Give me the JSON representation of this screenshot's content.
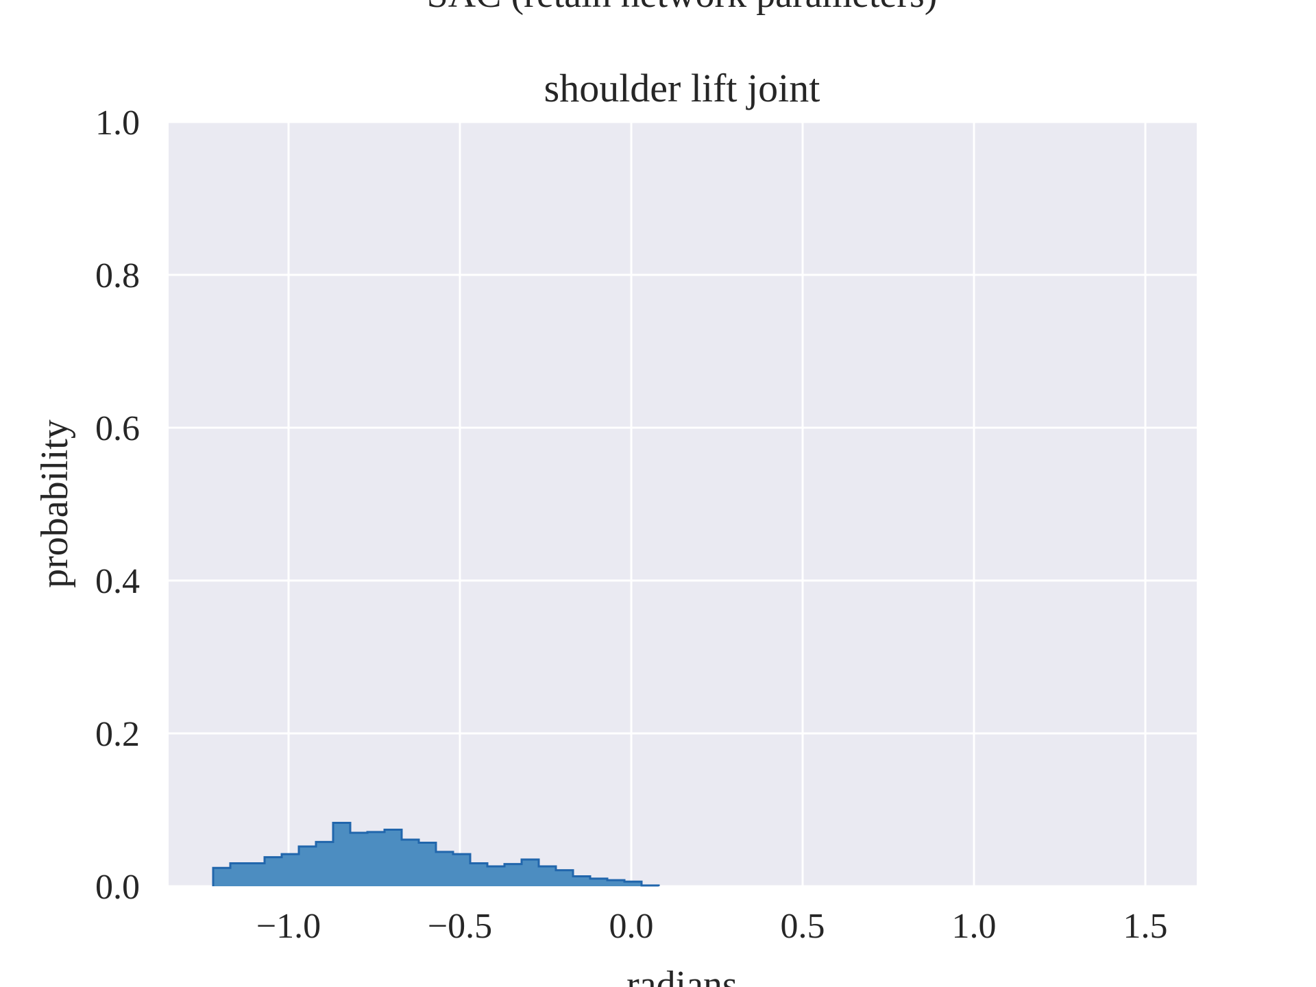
{
  "chart_data": {
    "type": "histogram",
    "suptitle": "SAC (retain network parameters)",
    "title": "shoulder lift joint",
    "xlabel": "radians",
    "ylabel": "probability",
    "xlim": [
      -1.35,
      1.65
    ],
    "ylim": [
      0.0,
      1.0
    ],
    "xticks": [
      -1.0,
      -0.5,
      0.0,
      0.5,
      1.0,
      1.5
    ],
    "xtick_labels": [
      "−1.0",
      "−0.5",
      "0.0",
      "0.5",
      "1.0",
      "1.5"
    ],
    "yticks": [
      0.0,
      0.2,
      0.4,
      0.6,
      0.8,
      1.0
    ],
    "ytick_labels": [
      "0.0",
      "0.2",
      "0.4",
      "0.6",
      "0.8",
      "1.0"
    ],
    "grid": true,
    "bin_edges": [
      -1.22,
      -1.17,
      -1.12,
      -1.07,
      -1.02,
      -0.97,
      -0.92,
      -0.87,
      -0.82,
      -0.77,
      -0.72,
      -0.67,
      -0.62,
      -0.57,
      -0.52,
      -0.47,
      -0.42,
      -0.37,
      -0.32,
      -0.27,
      -0.22,
      -0.17,
      -0.12,
      -0.07,
      -0.02,
      0.03,
      0.08
    ],
    "values": [
      0.024,
      0.03,
      0.03,
      0.038,
      0.042,
      0.052,
      0.058,
      0.083,
      0.07,
      0.071,
      0.074,
      0.061,
      0.057,
      0.045,
      0.042,
      0.03,
      0.026,
      0.029,
      0.035,
      0.026,
      0.021,
      0.013,
      0.01,
      0.008,
      0.006,
      0.001
    ],
    "colors": {
      "fill": "#4C8DC1",
      "edge": "#2166AC",
      "background": "#EAEAF2",
      "grid": "#FFFFFF"
    }
  }
}
